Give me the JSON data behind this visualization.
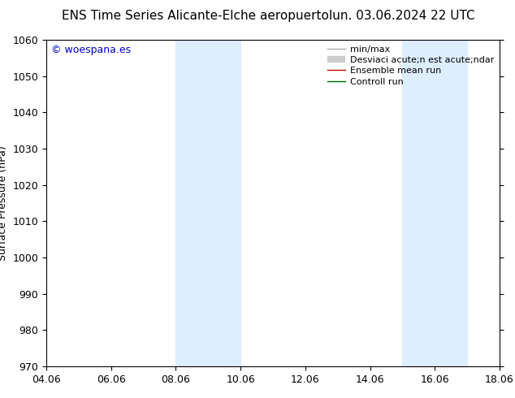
{
  "title_left": "ENS Time Series Alicante-Elche aeropuerto",
  "title_right": "lun. 03.06.2024 22 UTC",
  "ylabel": "Surface Pressure (hPa)",
  "ylim": [
    970,
    1060
  ],
  "yticks": [
    970,
    980,
    990,
    1000,
    1010,
    1020,
    1030,
    1040,
    1050,
    1060
  ],
  "xlim_start": 0,
  "xlim_end": 14,
  "xtick_labels": [
    "04.06",
    "06.06",
    "08.06",
    "10.06",
    "12.06",
    "14.06",
    "16.06",
    "18.06"
  ],
  "xtick_positions": [
    0,
    2,
    4,
    6,
    8,
    10,
    12,
    14
  ],
  "shaded_bands": [
    {
      "x_start": 4.0,
      "x_end": 5.0
    },
    {
      "x_start": 5.0,
      "x_end": 6.0
    },
    {
      "x_start": 11.0,
      "x_end": 12.0
    },
    {
      "x_start": 12.0,
      "x_end": 13.0
    }
  ],
  "shade_color": "#ddeeff",
  "shade_color2": "#cce8ff",
  "copyright_text": "© woespana.es",
  "copyright_color": "#0000cc",
  "legend_labels": [
    "min/max",
    "Desviaci acute;n est acute;ndar",
    "Ensemble mean run",
    "Controll run"
  ],
  "legend_colors": [
    "#aaaaaa",
    "#cccccc",
    "#cc0000",
    "#006600"
  ],
  "legend_lws": [
    1.0,
    6,
    1.0,
    1.0
  ],
  "bg_color": "#ffffff",
  "axis_color": "#000000",
  "title_fontsize": 11,
  "tick_fontsize": 9,
  "ylabel_fontsize": 9,
  "copyright_fontsize": 9,
  "legend_fontsize": 8
}
